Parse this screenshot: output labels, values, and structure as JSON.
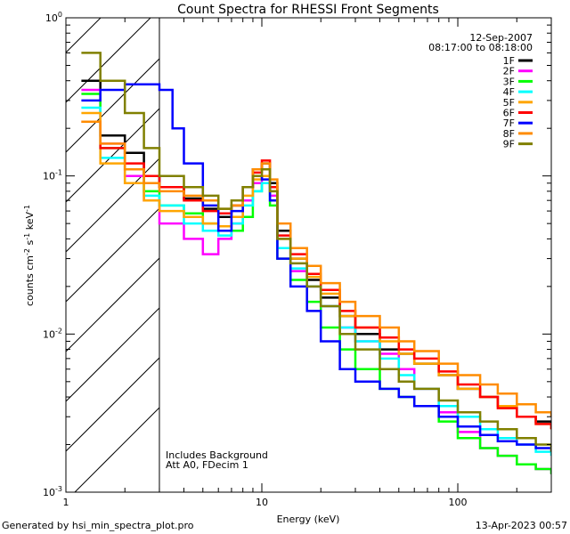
{
  "chart_data": {
    "type": "line",
    "scale": {
      "x": "log",
      "y": "log"
    },
    "title": "Count Spectra for RHESSI Front Segments",
    "xlabel": "Energy (keV)",
    "ylabel": "counts cm^-2 s^-1 keV^-1",
    "xlim": [
      1,
      300
    ],
    "ylim": [
      0.001,
      1
    ],
    "x_ticks": [
      {
        "value": 1,
        "label": "1"
      },
      {
        "value": 10,
        "label": "10"
      },
      {
        "value": 100,
        "label": "100"
      }
    ],
    "y_ticks": [
      {
        "value": 0.001,
        "mantissa": "10",
        "exp": "-3"
      },
      {
        "value": 0.01,
        "mantissa": "10",
        "exp": "-2"
      },
      {
        "value": 0.1,
        "mantissa": "10",
        "exp": "-1"
      },
      {
        "value": 1,
        "mantissa": "10",
        "exp": "0"
      }
    ],
    "date_text": "12-Sep-2007",
    "time_range_text": "08:17:00 to 08:18:00",
    "shaded_region": {
      "x_from": 1,
      "x_to": 3,
      "style": "diagonal-hatch"
    },
    "vertical_line_x": 3,
    "annotations": [
      "Includes Background",
      "Att A0, FDecim 1"
    ],
    "series": [
      {
        "name": "1F",
        "color": "#000000",
        "points": [
          [
            1.2,
            0.4
          ],
          [
            1.5,
            0.18
          ],
          [
            2,
            0.14
          ],
          [
            2.5,
            0.1
          ],
          [
            3,
            0.085
          ],
          [
            4,
            0.072
          ],
          [
            5,
            0.062
          ],
          [
            6,
            0.055
          ],
          [
            7,
            0.065
          ],
          [
            8,
            0.085
          ],
          [
            9,
            0.11
          ],
          [
            10,
            0.12
          ],
          [
            11,
            0.09
          ],
          [
            12,
            0.045
          ],
          [
            14,
            0.03
          ],
          [
            17,
            0.022
          ],
          [
            20,
            0.017
          ],
          [
            25,
            0.013
          ],
          [
            30,
            0.01
          ],
          [
            40,
            0.008
          ],
          [
            50,
            0.0075
          ],
          [
            60,
            0.0065
          ],
          [
            80,
            0.0055
          ],
          [
            100,
            0.0045
          ],
          [
            130,
            0.004
          ],
          [
            160,
            0.0035
          ],
          [
            200,
            0.003
          ],
          [
            250,
            0.0028
          ],
          [
            300,
            0.0025
          ]
        ]
      },
      {
        "name": "2F",
        "color": "#ff00ff",
        "points": [
          [
            1.2,
            0.35
          ],
          [
            1.5,
            0.16
          ],
          [
            2,
            0.1
          ],
          [
            2.5,
            0.07
          ],
          [
            3,
            0.05
          ],
          [
            4,
            0.04
          ],
          [
            5,
            0.032
          ],
          [
            6,
            0.04
          ],
          [
            7,
            0.05
          ],
          [
            8,
            0.07
          ],
          [
            9,
            0.09
          ],
          [
            10,
            0.1
          ],
          [
            11,
            0.075
          ],
          [
            12,
            0.035
          ],
          [
            14,
            0.025
          ],
          [
            17,
            0.02
          ],
          [
            20,
            0.015
          ],
          [
            25,
            0.011
          ],
          [
            30,
            0.009
          ],
          [
            40,
            0.0075
          ],
          [
            50,
            0.006
          ],
          [
            60,
            0.0045
          ],
          [
            80,
            0.0032
          ],
          [
            100,
            0.0024
          ],
          [
            130,
            0.0019
          ],
          [
            160,
            0.0017
          ],
          [
            200,
            0.0015
          ],
          [
            250,
            0.0014
          ],
          [
            300,
            0.0013
          ]
        ]
      },
      {
        "name": "3F",
        "color": "#00ff00",
        "points": [
          [
            1.2,
            0.33
          ],
          [
            1.5,
            0.15
          ],
          [
            2,
            0.11
          ],
          [
            2.5,
            0.08
          ],
          [
            3,
            0.065
          ],
          [
            4,
            0.058
          ],
          [
            5,
            0.05
          ],
          [
            6,
            0.045
          ],
          [
            7,
            0.045
          ],
          [
            8,
            0.055
          ],
          [
            9,
            0.08
          ],
          [
            10,
            0.09
          ],
          [
            11,
            0.065
          ],
          [
            12,
            0.03
          ],
          [
            14,
            0.022
          ],
          [
            17,
            0.016
          ],
          [
            20,
            0.011
          ],
          [
            25,
            0.008
          ],
          [
            30,
            0.006
          ],
          [
            40,
            0.0045
          ],
          [
            50,
            0.004
          ],
          [
            60,
            0.0035
          ],
          [
            80,
            0.0028
          ],
          [
            100,
            0.0022
          ],
          [
            130,
            0.0019
          ],
          [
            160,
            0.0017
          ],
          [
            200,
            0.0015
          ],
          [
            250,
            0.0014
          ],
          [
            300,
            0.0013
          ]
        ]
      },
      {
        "name": "4F",
        "color": "#00ffff",
        "points": [
          [
            1.2,
            0.27
          ],
          [
            1.5,
            0.13
          ],
          [
            2,
            0.09
          ],
          [
            2.5,
            0.075
          ],
          [
            3,
            0.065
          ],
          [
            4,
            0.05
          ],
          [
            5,
            0.045
          ],
          [
            6,
            0.042
          ],
          [
            7,
            0.05
          ],
          [
            8,
            0.065
          ],
          [
            9,
            0.08
          ],
          [
            10,
            0.09
          ],
          [
            11,
            0.07
          ],
          [
            12,
            0.035
          ],
          [
            14,
            0.026
          ],
          [
            17,
            0.02
          ],
          [
            20,
            0.015
          ],
          [
            25,
            0.011
          ],
          [
            30,
            0.009
          ],
          [
            40,
            0.007
          ],
          [
            50,
            0.0055
          ],
          [
            60,
            0.0045
          ],
          [
            80,
            0.0035
          ],
          [
            100,
            0.003
          ],
          [
            130,
            0.0025
          ],
          [
            160,
            0.0022
          ],
          [
            200,
            0.002
          ],
          [
            250,
            0.0018
          ],
          [
            300,
            0.0017
          ]
        ]
      },
      {
        "name": "5F",
        "color": "#ffa500",
        "points": [
          [
            1.2,
            0.25
          ],
          [
            1.5,
            0.12
          ],
          [
            2,
            0.09
          ],
          [
            2.5,
            0.07
          ],
          [
            3,
            0.06
          ],
          [
            4,
            0.055
          ],
          [
            5,
            0.05
          ],
          [
            6,
            0.048
          ],
          [
            7,
            0.055
          ],
          [
            8,
            0.075
          ],
          [
            9,
            0.095
          ],
          [
            10,
            0.1
          ],
          [
            11,
            0.08
          ],
          [
            12,
            0.04
          ],
          [
            14,
            0.03
          ],
          [
            17,
            0.023
          ],
          [
            20,
            0.018
          ],
          [
            25,
            0.013
          ],
          [
            30,
            0.011
          ],
          [
            40,
            0.009
          ],
          [
            50,
            0.0075
          ],
          [
            60,
            0.0065
          ],
          [
            80,
            0.0055
          ],
          [
            100,
            0.0045
          ],
          [
            130,
            0.004
          ],
          [
            160,
            0.0035
          ],
          [
            200,
            0.003
          ],
          [
            250,
            0.0027
          ],
          [
            300,
            0.0025
          ]
        ]
      },
      {
        "name": "6F",
        "color": "#ff0000",
        "points": [
          [
            1.2,
            0.22
          ],
          [
            1.5,
            0.15
          ],
          [
            2,
            0.12
          ],
          [
            2.5,
            0.1
          ],
          [
            3,
            0.085
          ],
          [
            4,
            0.07
          ],
          [
            5,
            0.06
          ],
          [
            6,
            0.058
          ],
          [
            7,
            0.065
          ],
          [
            8,
            0.085
          ],
          [
            9,
            0.105
          ],
          [
            10,
            0.125
          ],
          [
            11,
            0.085
          ],
          [
            12,
            0.042
          ],
          [
            14,
            0.032
          ],
          [
            17,
            0.024
          ],
          [
            20,
            0.019
          ],
          [
            25,
            0.014
          ],
          [
            30,
            0.011
          ],
          [
            40,
            0.0095
          ],
          [
            50,
            0.008
          ],
          [
            60,
            0.007
          ],
          [
            80,
            0.0058
          ],
          [
            100,
            0.0048
          ],
          [
            130,
            0.004
          ],
          [
            160,
            0.0034
          ],
          [
            200,
            0.003
          ],
          [
            250,
            0.0027
          ],
          [
            300,
            0.0025
          ]
        ]
      },
      {
        "name": "7F",
        "color": "#0000ff",
        "points": [
          [
            1.2,
            0.3
          ],
          [
            1.5,
            0.35
          ],
          [
            2,
            0.38
          ],
          [
            2.5,
            0.38
          ],
          [
            3,
            0.35
          ],
          [
            3.5,
            0.2
          ],
          [
            4,
            0.12
          ],
          [
            5,
            0.065
          ],
          [
            6,
            0.045
          ],
          [
            7,
            0.06
          ],
          [
            8,
            0.085
          ],
          [
            9,
            0.1
          ],
          [
            10,
            0.095
          ],
          [
            11,
            0.07
          ],
          [
            12,
            0.03
          ],
          [
            14,
            0.02
          ],
          [
            17,
            0.014
          ],
          [
            20,
            0.009
          ],
          [
            25,
            0.006
          ],
          [
            30,
            0.005
          ],
          [
            40,
            0.0045
          ],
          [
            50,
            0.004
          ],
          [
            60,
            0.0035
          ],
          [
            80,
            0.003
          ],
          [
            100,
            0.0026
          ],
          [
            130,
            0.0023
          ],
          [
            160,
            0.0021
          ],
          [
            200,
            0.002
          ],
          [
            250,
            0.0019
          ],
          [
            300,
            0.0018
          ]
        ]
      },
      {
        "name": "8F",
        "color": "#ff8c00",
        "points": [
          [
            1.2,
            0.22
          ],
          [
            1.5,
            0.16
          ],
          [
            2,
            0.11
          ],
          [
            2.5,
            0.09
          ],
          [
            3,
            0.08
          ],
          [
            4,
            0.075
          ],
          [
            5,
            0.07
          ],
          [
            6,
            0.062
          ],
          [
            7,
            0.065
          ],
          [
            8,
            0.085
          ],
          [
            9,
            0.11
          ],
          [
            10,
            0.12
          ],
          [
            11,
            0.095
          ],
          [
            12,
            0.05
          ],
          [
            14,
            0.035
          ],
          [
            17,
            0.027
          ],
          [
            20,
            0.021
          ],
          [
            25,
            0.016
          ],
          [
            30,
            0.013
          ],
          [
            40,
            0.011
          ],
          [
            50,
            0.009
          ],
          [
            60,
            0.0078
          ],
          [
            80,
            0.0065
          ],
          [
            100,
            0.0055
          ],
          [
            130,
            0.0048
          ],
          [
            160,
            0.0042
          ],
          [
            200,
            0.0036
          ],
          [
            250,
            0.0032
          ],
          [
            300,
            0.003
          ]
        ]
      },
      {
        "name": "9F",
        "color": "#808000",
        "points": [
          [
            1.2,
            0.6
          ],
          [
            1.5,
            0.4
          ],
          [
            2,
            0.25
          ],
          [
            2.5,
            0.15
          ],
          [
            3,
            0.1
          ],
          [
            4,
            0.085
          ],
          [
            5,
            0.075
          ],
          [
            6,
            0.062
          ],
          [
            7,
            0.07
          ],
          [
            8,
            0.085
          ],
          [
            9,
            0.1
          ],
          [
            10,
            0.11
          ],
          [
            11,
            0.08
          ],
          [
            12,
            0.04
          ],
          [
            14,
            0.028
          ],
          [
            17,
            0.02
          ],
          [
            20,
            0.015
          ],
          [
            25,
            0.01
          ],
          [
            30,
            0.008
          ],
          [
            40,
            0.006
          ],
          [
            50,
            0.005
          ],
          [
            60,
            0.0045
          ],
          [
            80,
            0.0038
          ],
          [
            100,
            0.0032
          ],
          [
            130,
            0.0028
          ],
          [
            160,
            0.0025
          ],
          [
            200,
            0.0022
          ],
          [
            250,
            0.002
          ],
          [
            300,
            0.0018
          ]
        ]
      }
    ]
  },
  "footer": {
    "generated_by": "Generated by hsi_min_spectra_plot.pro",
    "timestamp": "13-Apr-2023 00:57"
  }
}
